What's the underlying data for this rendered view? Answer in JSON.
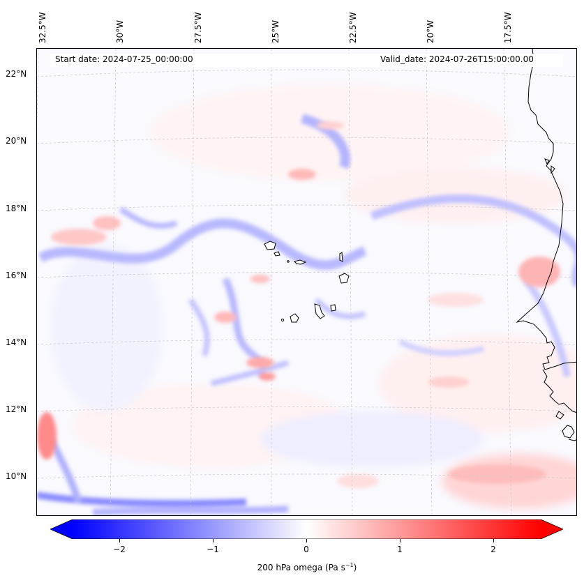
{
  "lon_labels": [
    "32.5°W",
    "30°W",
    "27.5°W",
    "25°W",
    "22.5°W",
    "20°W",
    "17.5°W"
  ],
  "lat_labels": [
    "22°N",
    "20°N",
    "18°N",
    "16°N",
    "14°N",
    "12°N",
    "10°N"
  ],
  "start_date": "Start date: 2024-07-25_00:00:00",
  "valid_date": "Valid_date: 2024-07-26T15:00:00.00",
  "colorbar": {
    "ticks": [
      "−2",
      "−1",
      "0",
      "1",
      "2"
    ],
    "min": -2.75,
    "max": 2.75,
    "label": "200 hPa omega (Pa s",
    "label_sup": "−1",
    "label_end": ")",
    "low_color": "#0000ff",
    "mid_color": "#ffffff",
    "high_color": "#ff0000"
  },
  "colors": {
    "coastline": "#000000",
    "gridline": "#c8c8c8"
  }
}
